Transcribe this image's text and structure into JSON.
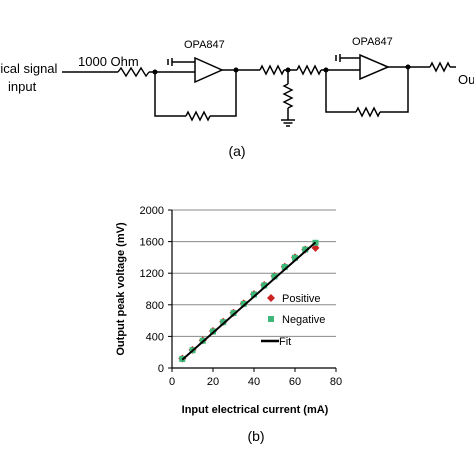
{
  "circuit": {
    "input_label_line1": "rical signal",
    "input_label_line2": "input",
    "resistor_label": "1000 Ohm",
    "opamp1_label": "OPA847",
    "opamp2_label": "OPA847",
    "output_label": "Ou",
    "caption": "(a)"
  },
  "chart_data": {
    "type": "scatter",
    "xlabel": "Input electrical current (mA)",
    "ylabel": "Output peak voltage (mV)",
    "xlim": [
      0,
      80
    ],
    "ylim": [
      0,
      2000
    ],
    "x_ticks": [
      "0",
      "20",
      "40",
      "60",
      "80"
    ],
    "y_ticks": [
      "0",
      "400",
      "800",
      "1200",
      "1600",
      "2000"
    ],
    "grid": "horizontal",
    "legend_position": "right",
    "series": [
      {
        "name": "Positive",
        "marker": "diamond",
        "color": "#cc2222",
        "x": [
          5,
          10,
          15,
          20,
          25,
          30,
          35,
          40,
          45,
          50,
          55,
          60,
          65,
          70
        ],
        "y": [
          118,
          230,
          350,
          468,
          585,
          700,
          818,
          935,
          1050,
          1165,
          1282,
          1400,
          1500,
          1520
        ]
      },
      {
        "name": "Negative",
        "marker": "square",
        "color": "#3cb878",
        "x": [
          5,
          10,
          15,
          20,
          25,
          30,
          35,
          40,
          45,
          50,
          55,
          60,
          65,
          70
        ],
        "y": [
          115,
          225,
          345,
          462,
          580,
          695,
          812,
          930,
          1045,
          1160,
          1278,
          1395,
          1500,
          1585
        ]
      },
      {
        "name": "Fit",
        "marker": "line",
        "color": "#000000",
        "x": [
          5,
          70
        ],
        "y": [
          105,
          1590
        ]
      }
    ],
    "caption": "(b)"
  }
}
